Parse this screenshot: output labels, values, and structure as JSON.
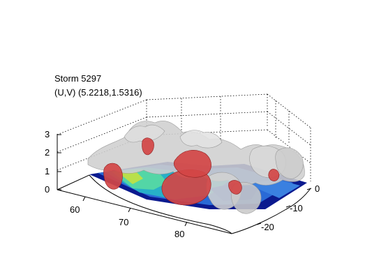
{
  "chart_data": {
    "type": "3d-isosurface",
    "title_lines": [
      "Storm 5297",
      "(U,V) (5.2218,1.5316)"
    ],
    "axes": {
      "x": {
        "ticks": [
          60,
          70,
          80
        ],
        "label": ""
      },
      "y": {
        "ticks": [
          0,
          -10,
          -20
        ],
        "label": ""
      },
      "z": {
        "ticks": [
          0,
          1,
          2,
          3
        ],
        "label": ""
      }
    },
    "grid": true,
    "surfaces": [
      {
        "name": "",
        "color": "#c8c8c8",
        "description": "grey translucent isosurface"
      },
      {
        "name": "",
        "color": "#d44848",
        "description": "red isosurface"
      }
    ],
    "floor_colormap": [
      "#00007f",
      "#0040ff",
      "#00bfff",
      "#40ffbf",
      "#bfff40"
    ]
  }
}
